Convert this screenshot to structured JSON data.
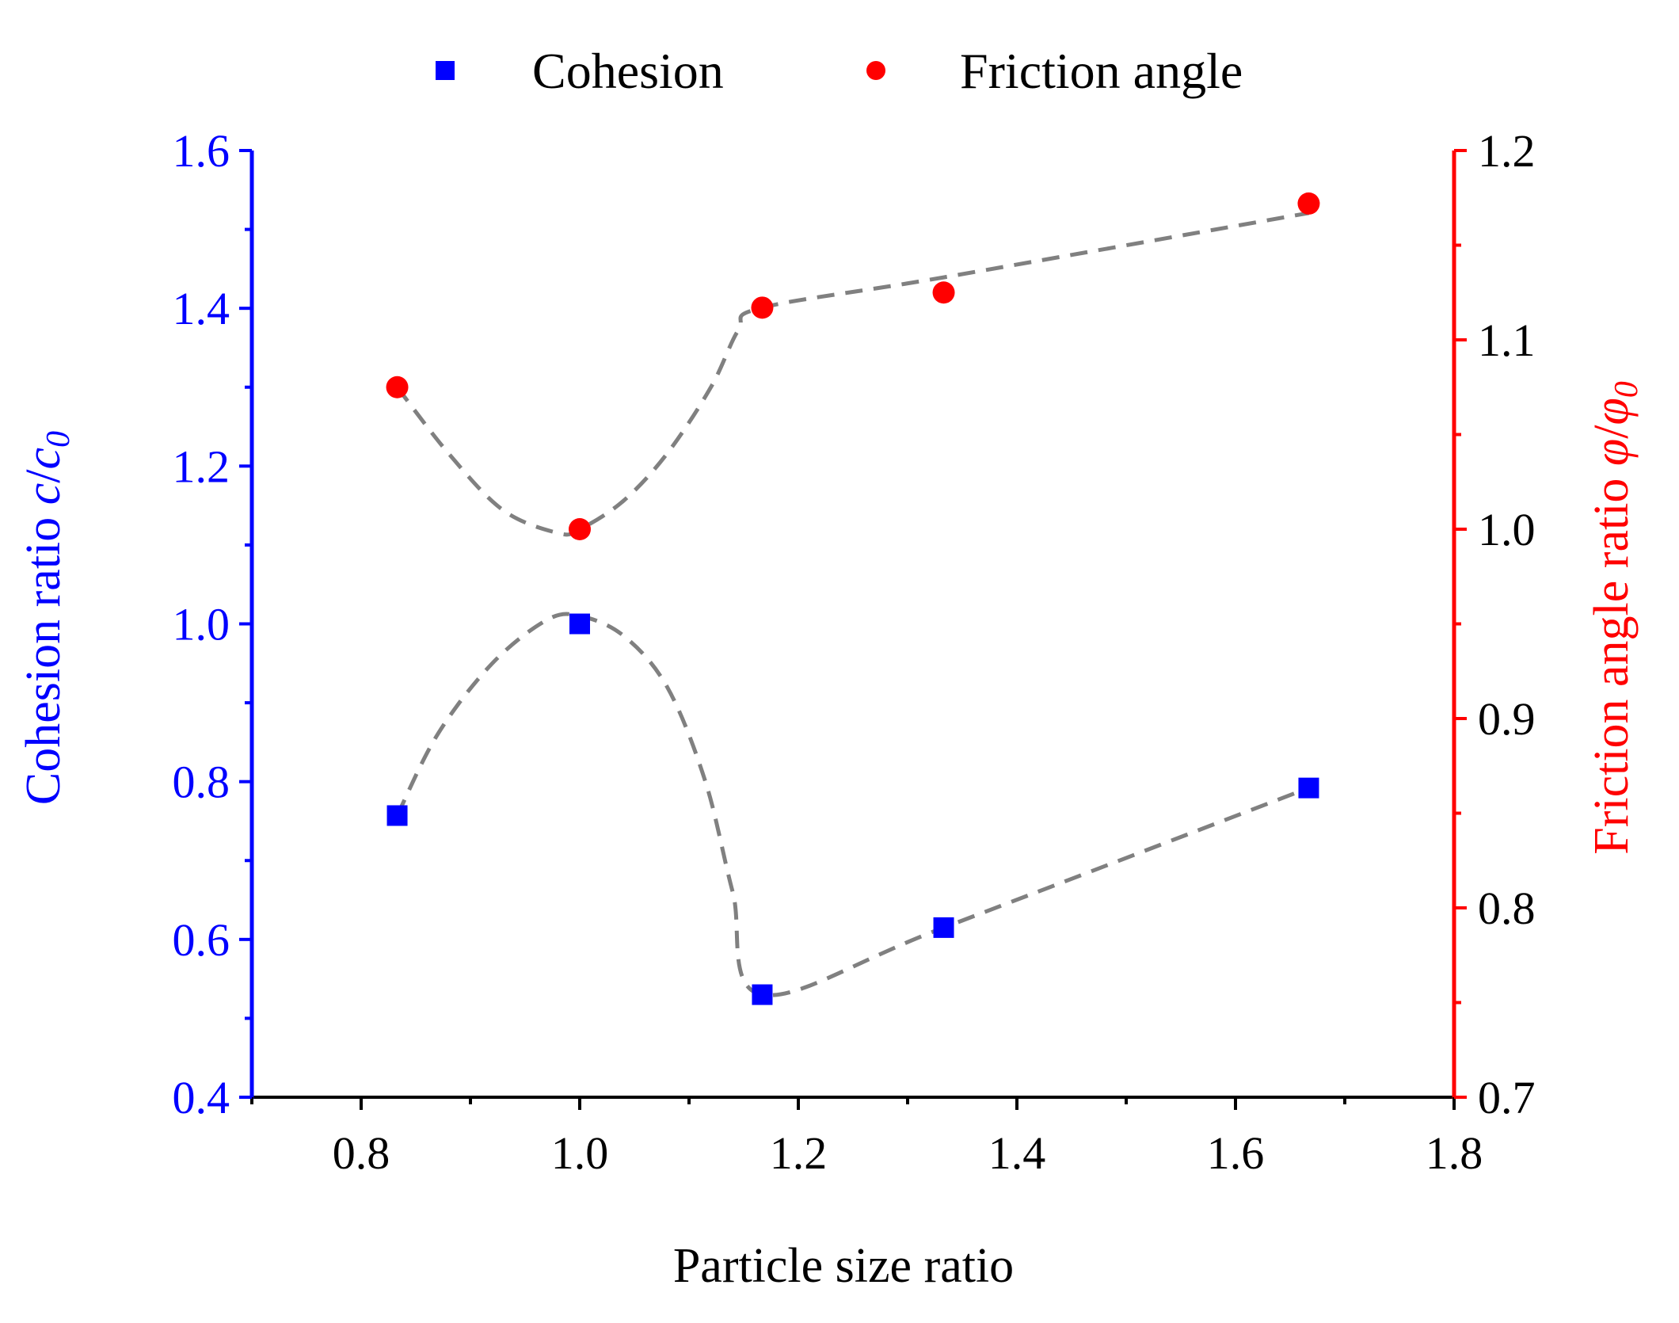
{
  "chart_data": {
    "type": "scatter",
    "xlabel": "Particle size ratio",
    "ylabel_left": {
      "text": "Cohesion ratio ",
      "var": "c",
      "slash": "/",
      "var2": "c",
      "sub": "0"
    },
    "ylabel_right": {
      "text": "Friction angle ratio ",
      "var": "φ",
      "slash": "/",
      "var2": "φ",
      "sub": "0"
    },
    "xlim": [
      0.7,
      1.8
    ],
    "ylim_left": [
      0.4,
      1.6
    ],
    "ylim_right": [
      0.7,
      1.2
    ],
    "x_ticks": [
      "0.8",
      "1.0",
      "1.2",
      "1.4",
      "1.6",
      "1.8"
    ],
    "y_left_ticks": [
      "0.4",
      "0.6",
      "0.8",
      "1.0",
      "1.2",
      "1.4",
      "1.6"
    ],
    "y_right_ticks": [
      "0.7",
      "0.8",
      "0.9",
      "1.0",
      "1.1",
      "1.2"
    ],
    "grid": false,
    "legend_position": "top-center",
    "series": [
      {
        "name": "Cohesion",
        "axis": "left",
        "marker": "square",
        "color": "#0000ff",
        "x": [
          0.833,
          1.0,
          1.167,
          1.333,
          1.667
        ],
        "values": [
          0.757,
          1.0,
          0.53,
          0.615,
          0.792
        ],
        "fit_line": [
          [
            0.833,
            0.757
          ],
          [
            0.87,
            0.86
          ],
          [
            0.92,
            0.95
          ],
          [
            0.97,
            1.005
          ],
          [
            1.0,
            1.01
          ],
          [
            1.04,
            0.985
          ],
          [
            1.08,
            0.92
          ],
          [
            1.115,
            0.8
          ],
          [
            1.14,
            0.66
          ],
          [
            1.167,
            0.53
          ],
          [
            1.333,
            0.615
          ],
          [
            1.667,
            0.792
          ]
        ]
      },
      {
        "name": "Friction angle",
        "axis": "right",
        "marker": "circle",
        "color": "#ff0000",
        "x": [
          0.833,
          1.0,
          1.167,
          1.333,
          1.667
        ],
        "values": [
          1.075,
          1.0,
          1.117,
          1.125,
          1.172
        ],
        "fit_line": [
          [
            0.833,
            1.075
          ],
          [
            0.88,
            1.04
          ],
          [
            0.93,
            1.01
          ],
          [
            0.98,
            0.998
          ],
          [
            1.0,
            1.0
          ],
          [
            1.04,
            1.015
          ],
          [
            1.08,
            1.04
          ],
          [
            1.12,
            1.075
          ],
          [
            1.145,
            1.105
          ],
          [
            1.167,
            1.117
          ],
          [
            1.333,
            1.133
          ],
          [
            1.667,
            1.167
          ]
        ]
      }
    ],
    "colors": {
      "left_axis": "#0000ff",
      "right_axis": "#ff0000",
      "fit_line": "#808080"
    }
  }
}
